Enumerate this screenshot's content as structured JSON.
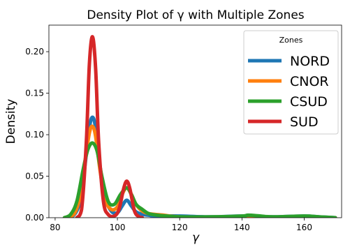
{
  "chart_data": {
    "type": "line",
    "title": "Density Plot of γ with Multiple Zones",
    "xlabel": "γ",
    "ylabel": "Density",
    "xlim": [
      78,
      172
    ],
    "ylim": [
      0,
      0.232
    ],
    "xticks": [
      80,
      100,
      120,
      140,
      160
    ],
    "yticks": [
      0.0,
      0.05,
      0.1,
      0.15,
      0.2
    ],
    "xtick_labels": [
      "80",
      "100",
      "120",
      "140",
      "160"
    ],
    "ytick_labels": [
      "0.00",
      "0.05",
      "0.10",
      "0.15",
      "0.20"
    ],
    "grid": false,
    "legend": {
      "title": "Zones",
      "placement": "top-right"
    },
    "series": [
      {
        "name": "NORD",
        "color": "#1f77b4",
        "x": [
          83,
          86,
          88,
          89.5,
          91,
          92,
          93,
          94.5,
          96,
          98,
          100,
          101.5,
          103,
          104.5,
          106,
          108,
          110,
          112,
          115,
          120,
          130,
          140,
          150,
          160,
          165,
          170
        ],
        "y": [
          0.0,
          0.003,
          0.02,
          0.06,
          0.108,
          0.121,
          0.108,
          0.06,
          0.025,
          0.008,
          0.006,
          0.014,
          0.021,
          0.014,
          0.007,
          0.004,
          0.003,
          0.002,
          0.002,
          0.002,
          0.001,
          0.002,
          0.001,
          0.002,
          0.001,
          0.0
        ]
      },
      {
        "name": "CNOR",
        "color": "#ff7f0e",
        "x": [
          83,
          86,
          88,
          89.5,
          91,
          92,
          93,
          94.5,
          96,
          98,
          100,
          101.5,
          103,
          104.5,
          106,
          108,
          110,
          112,
          115,
          118,
          125,
          140,
          155,
          170
        ],
        "y": [
          0.0,
          0.004,
          0.025,
          0.065,
          0.102,
          0.11,
          0.098,
          0.055,
          0.022,
          0.01,
          0.013,
          0.028,
          0.036,
          0.028,
          0.016,
          0.008,
          0.005,
          0.004,
          0.003,
          0.0015,
          0.0,
          0.0,
          0.0,
          0.0
        ]
      },
      {
        "name": "CSUD",
        "color": "#2ca02c",
        "x": [
          83,
          85,
          87,
          89,
          90.5,
          92,
          93.5,
          95,
          97,
          99,
          101,
          103,
          104.5,
          106,
          108,
          110,
          113,
          116,
          120,
          130,
          140,
          142,
          146,
          150,
          160,
          165,
          170
        ],
        "y": [
          0.0,
          0.004,
          0.02,
          0.058,
          0.082,
          0.09,
          0.08,
          0.05,
          0.02,
          0.016,
          0.028,
          0.036,
          0.028,
          0.016,
          0.01,
          0.005,
          0.003,
          0.002,
          0.001,
          0.001,
          0.002,
          0.003,
          0.002,
          0.001,
          0.002,
          0.001,
          0.0
        ]
      },
      {
        "name": "SUD",
        "color": "#d62728",
        "x": [
          87,
          88.5,
          90,
          91,
          92,
          93,
          94,
          95.5,
          97,
          99,
          100.5,
          102,
          103,
          104,
          105.5,
          107,
          108
        ],
        "y": [
          0.0,
          0.01,
          0.09,
          0.185,
          0.218,
          0.18,
          0.09,
          0.02,
          0.004,
          0.002,
          0.01,
          0.035,
          0.044,
          0.035,
          0.008,
          0.001,
          0.0
        ]
      }
    ]
  }
}
